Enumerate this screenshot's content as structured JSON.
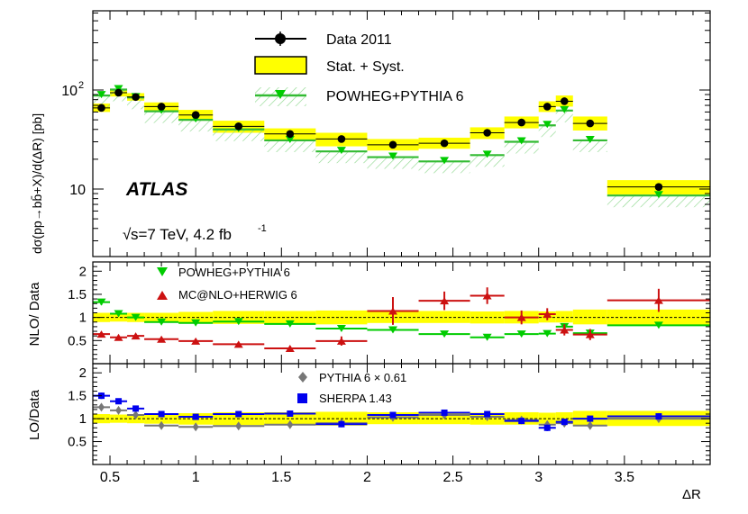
{
  "chart_data": [
    {
      "type": "line",
      "panel": "main",
      "yscale": "log",
      "ylim": [
        2.5,
        700
      ],
      "xlim": [
        0.4,
        4.0
      ],
      "ylabel": "dσ(pp→bb̄+X)/d(ΔR) [pb]",
      "ytick_labels": [
        "10",
        "10^2"
      ],
      "experiment": "ATLAS",
      "energy_label": "s=7 TeV, 4.2 fb",
      "energy_sup": "-1",
      "legend": [
        {
          "label": "Data 2011",
          "kind": "data"
        },
        {
          "label": "Stat. + Syst.",
          "kind": "band"
        },
        {
          "label": "POWHEG+PYTHIA 6",
          "kind": "powheg"
        }
      ],
      "bins": [
        [
          0.4,
          0.5
        ],
        [
          0.5,
          0.6
        ],
        [
          0.6,
          0.7
        ],
        [
          0.7,
          0.9
        ],
        [
          0.9,
          1.1
        ],
        [
          1.1,
          1.4
        ],
        [
          1.4,
          1.7
        ],
        [
          1.7,
          2.0
        ],
        [
          2.0,
          2.3
        ],
        [
          2.3,
          2.6
        ],
        [
          2.6,
          2.8
        ],
        [
          2.8,
          3.0
        ],
        [
          3.0,
          3.1
        ],
        [
          3.1,
          3.2
        ],
        [
          3.2,
          3.4
        ],
        [
          3.4,
          4.0
        ]
      ],
      "x_points": [
        0.45,
        0.55,
        0.65,
        0.8,
        1.0,
        1.25,
        1.55,
        1.85,
        2.15,
        2.45,
        2.7,
        2.9,
        3.05,
        3.15,
        3.3,
        3.7
      ],
      "series": [
        {
          "name": "Data 2011",
          "values": [
            66,
            94,
            85,
            68,
            56,
            43,
            36,
            32,
            28,
            29,
            37,
            47,
            68,
            77,
            46,
            10.5
          ]
        },
        {
          "name": "Stat. + Syst. low",
          "values": [
            60,
            86,
            78,
            61,
            49,
            37,
            31,
            27,
            24.5,
            25.5,
            32,
            41,
            60,
            68,
            39,
            8.8
          ]
        },
        {
          "name": "Stat. + Syst. high",
          "values": [
            73,
            102,
            93,
            75,
            63,
            49,
            41,
            37,
            32,
            33,
            42,
            54,
            77,
            88,
            54,
            12.3
          ]
        },
        {
          "name": "POWHEG+PYTHIA 6",
          "values": [
            88,
            101,
            84,
            61,
            50,
            40,
            31,
            24,
            21,
            19,
            22,
            30,
            44,
            62,
            31,
            8.6
          ]
        }
      ]
    },
    {
      "type": "line",
      "panel": "nlo-ratio",
      "ylabel": "NLO/ Data",
      "ylim": [
        0,
        2.2
      ],
      "ytick_labels": [
        "0.5",
        "1",
        "1.5",
        "2"
      ],
      "legend": [
        {
          "label": "POWHEG+PYTHIA 6",
          "kind": "powheg"
        },
        {
          "label": "MC@NLO+HERWIG 6",
          "kind": "mcnlo"
        }
      ],
      "series": [
        {
          "name": "POWHEG+PYTHIA 6",
          "values": [
            1.33,
            1.08,
            1.0,
            0.9,
            0.88,
            0.91,
            0.86,
            0.76,
            0.73,
            0.64,
            0.57,
            0.64,
            0.65,
            0.8,
            0.66,
            0.83
          ],
          "errors": [
            0.06,
            0.03,
            0.03,
            0.03,
            0.03,
            0.02,
            0.02,
            0.02,
            0.02,
            0.02,
            0.02,
            0.03,
            0.03,
            0.04,
            0.04,
            0.04
          ]
        },
        {
          "name": "MC@NLO+HERWIG 6",
          "values": [
            0.64,
            0.57,
            0.6,
            0.53,
            0.49,
            0.42,
            0.33,
            0.49,
            1.14,
            1.36,
            1.47,
            1.0,
            1.07,
            0.73,
            0.63,
            1.37
          ],
          "errors": [
            0.04,
            0.04,
            0.04,
            0.04,
            0.04,
            0.04,
            0.04,
            0.1,
            0.3,
            0.2,
            0.18,
            0.15,
            0.13,
            0.12,
            0.12,
            0.25
          ]
        },
        {
          "name": "Band low",
          "values": [
            0.9,
            0.91,
            0.9,
            0.89,
            0.87,
            0.86,
            0.86,
            0.85,
            0.88,
            0.88,
            0.87,
            0.87,
            0.89,
            0.89,
            0.85,
            0.84
          ]
        },
        {
          "name": "Band high",
          "values": [
            1.1,
            1.09,
            1.1,
            1.1,
            1.12,
            1.14,
            1.14,
            1.15,
            1.14,
            1.14,
            1.13,
            1.14,
            1.13,
            1.14,
            1.17,
            1.17
          ]
        }
      ]
    },
    {
      "type": "line",
      "panel": "lo-ratio",
      "xlabel": "ΔR",
      "ylabel": "LO/Data",
      "ylim": [
        0,
        2.2
      ],
      "xlim": [
        0.4,
        4.0
      ],
      "ytick_labels": [
        "0.5",
        "1",
        "1.5",
        "2"
      ],
      "xtick_labels": [
        "0.5",
        "1",
        "1.5",
        "2",
        "2.5",
        "3",
        "3.5"
      ],
      "legend": [
        {
          "label": "PYTHIA 6 × 0.61",
          "kind": "pythia"
        },
        {
          "label": "SHERPA 1.43",
          "kind": "sherpa"
        }
      ],
      "series": [
        {
          "name": "PYTHIA 6 × 0.61",
          "values": [
            1.25,
            1.18,
            1.08,
            0.85,
            0.82,
            0.84,
            0.87,
            0.9,
            1.03,
            1.08,
            1.04,
            0.97,
            0.87,
            0.9,
            0.85,
            1.0
          ],
          "errors": [
            0.04,
            0.03,
            0.03,
            0.03,
            0.03,
            0.02,
            0.02,
            0.02,
            0.03,
            0.03,
            0.03,
            0.03,
            0.03,
            0.04,
            0.04,
            0.04
          ]
        },
        {
          "name": "SHERPA 1.43",
          "values": [
            1.5,
            1.38,
            1.22,
            1.1,
            1.04,
            1.1,
            1.11,
            0.88,
            1.08,
            1.13,
            1.1,
            0.95,
            0.8,
            0.93,
            1.0,
            1.05
          ],
          "errors": [
            0.07,
            0.06,
            0.06,
            0.05,
            0.05,
            0.05,
            0.05,
            0.04,
            0.05,
            0.06,
            0.06,
            0.06,
            0.07,
            0.07,
            0.06,
            0.07
          ]
        },
        {
          "name": "Band low",
          "values": [
            0.9,
            0.91,
            0.9,
            0.89,
            0.87,
            0.86,
            0.86,
            0.85,
            0.88,
            0.88,
            0.87,
            0.87,
            0.89,
            0.89,
            0.85,
            0.84
          ]
        },
        {
          "name": "Band high",
          "values": [
            1.1,
            1.09,
            1.1,
            1.1,
            1.12,
            1.14,
            1.14,
            1.15,
            1.14,
            1.14,
            1.13,
            1.14,
            1.13,
            1.14,
            1.17,
            1.17
          ]
        }
      ]
    }
  ],
  "colors": {
    "band": "#ffff00",
    "powheg": "#00cc00",
    "powheg_line": "#33bb33",
    "hatch": "#8fd88f",
    "mcnlo": "#cc1111",
    "pythia": "#777777",
    "sherpa": "#0000ee"
  }
}
